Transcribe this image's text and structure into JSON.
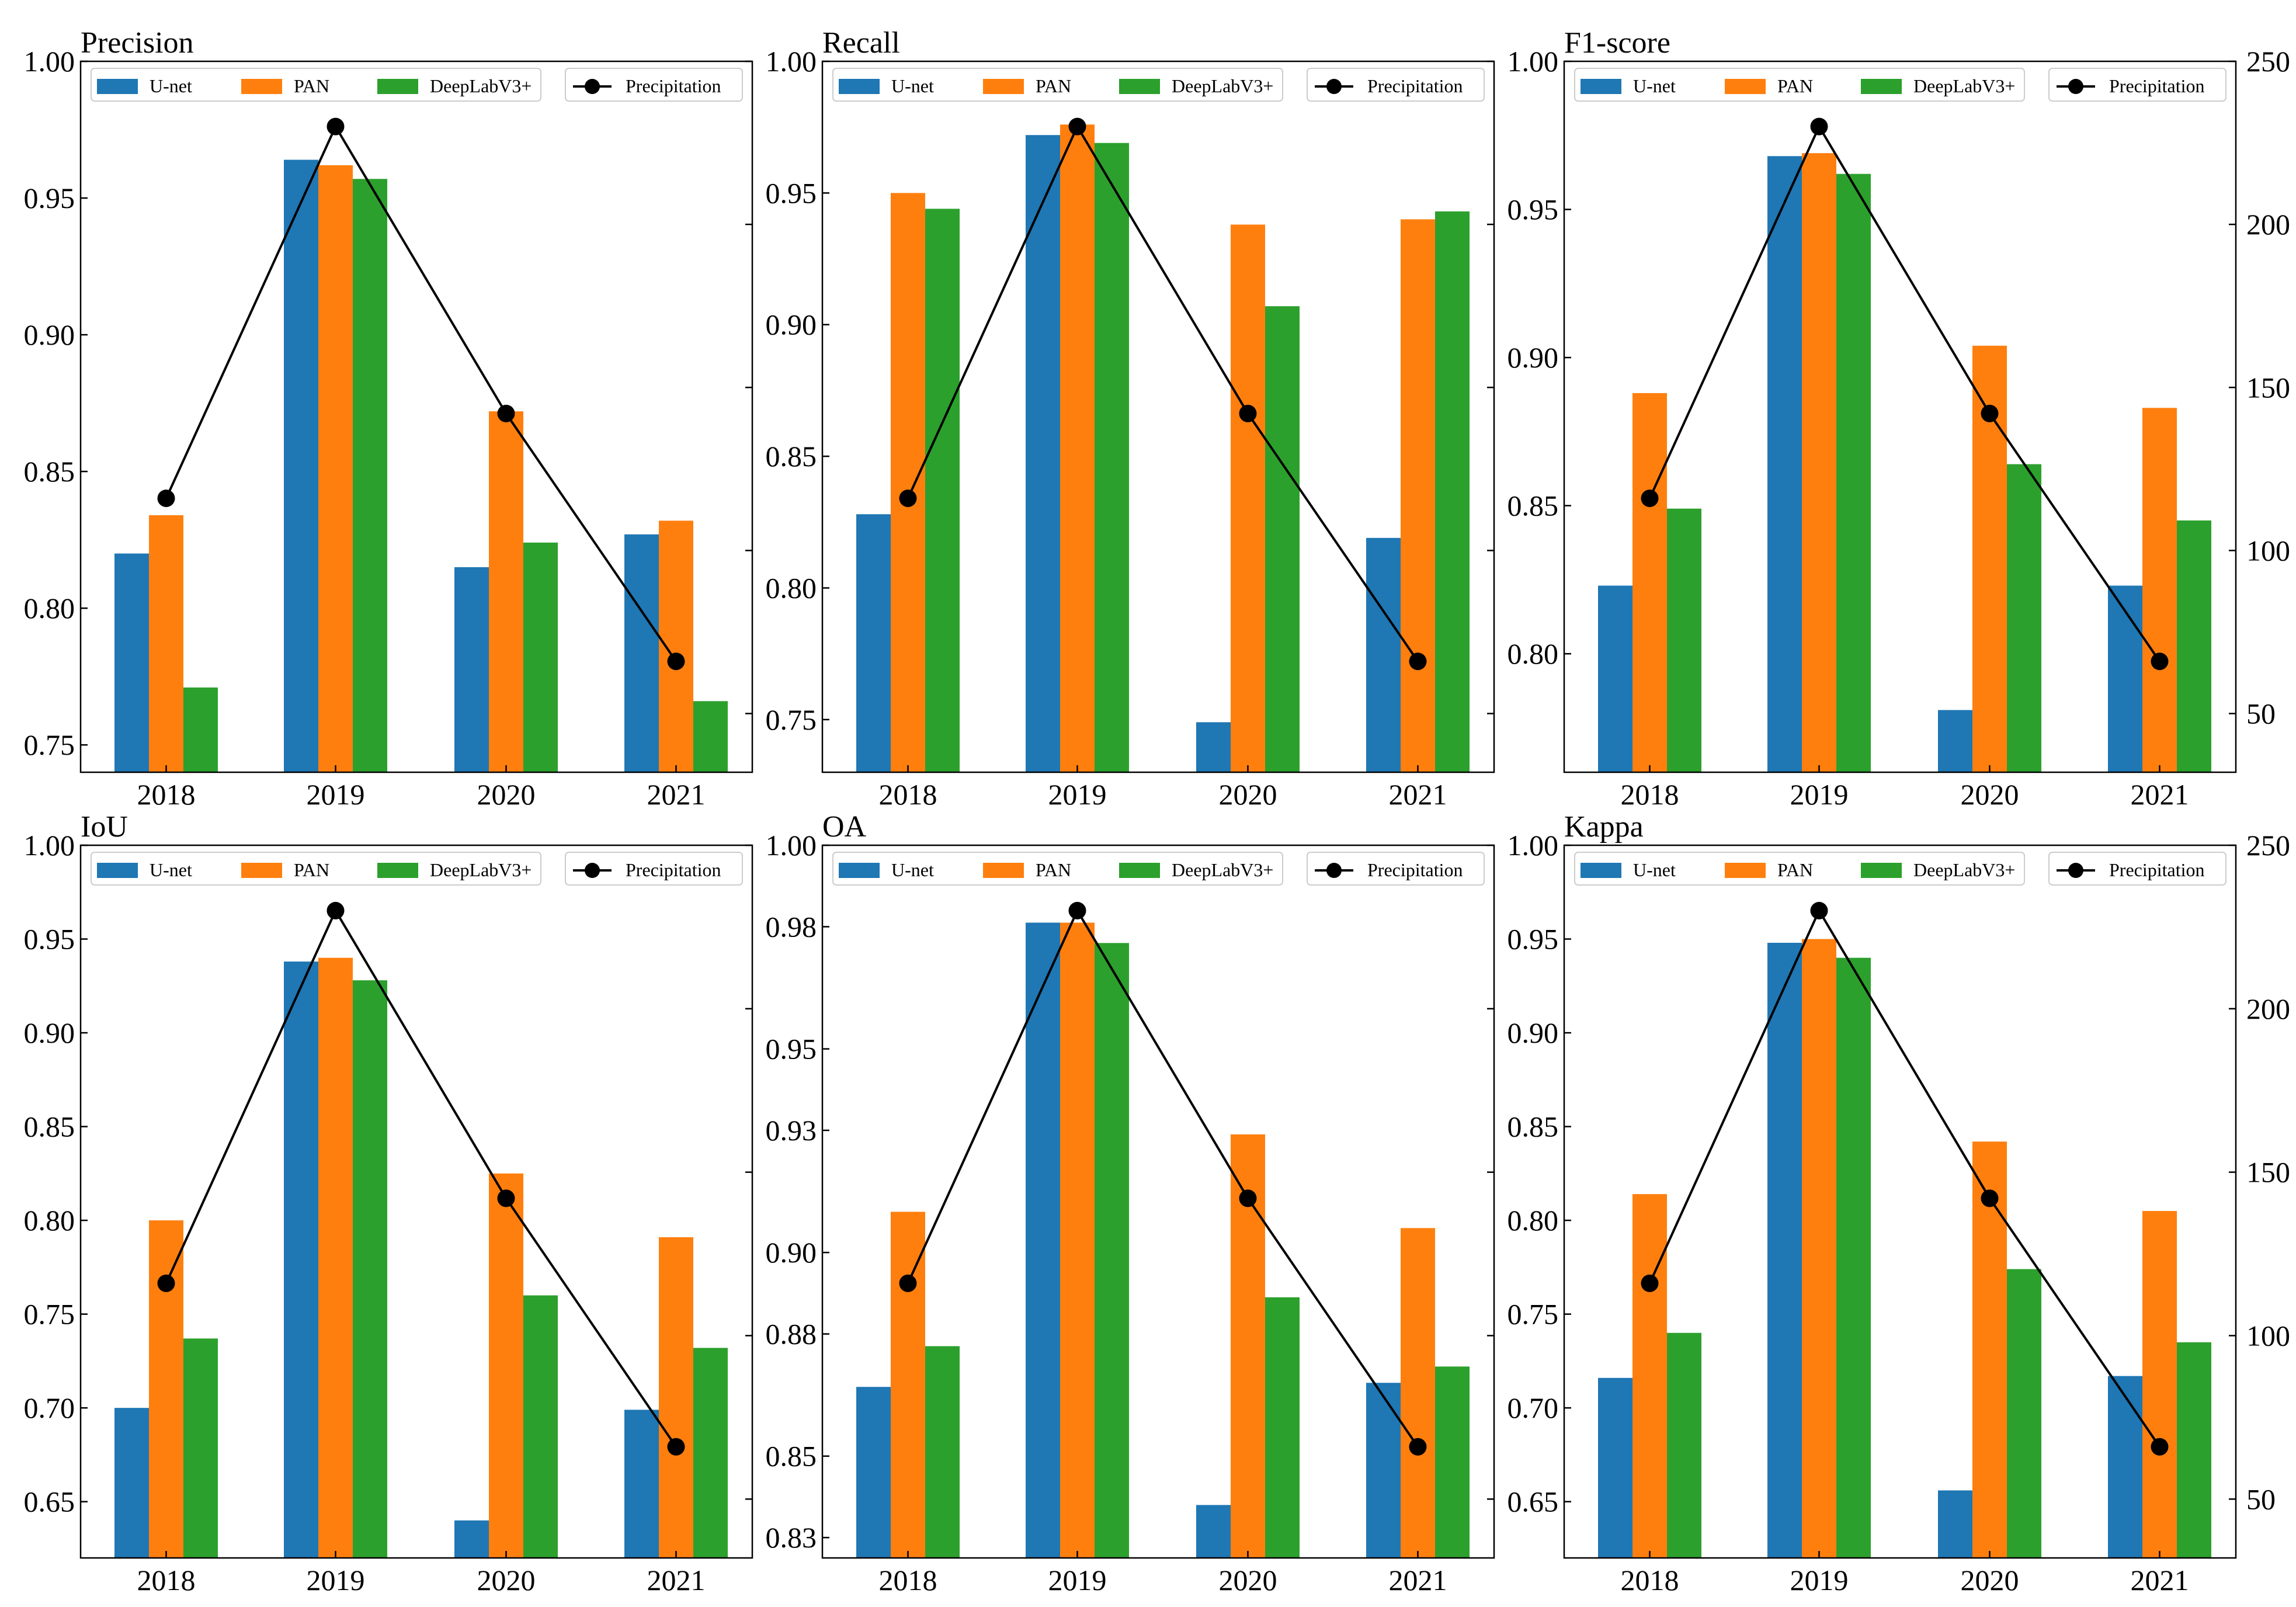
{
  "colors": {
    "U-net": "#1f77b4",
    "PAN": "#ff7f0e",
    "DeepLabV3+": "#2ca02c",
    "Precipitation": "#000000"
  },
  "chart_data": [
    {
      "type": "bar",
      "title": "Precision",
      "categories": [
        "2018",
        "2019",
        "2020",
        "2021"
      ],
      "series": [
        {
          "name": "U-net",
          "values": [
            0.82,
            0.964,
            0.815,
            0.827
          ]
        },
        {
          "name": "PAN",
          "values": [
            0.834,
            0.962,
            0.872,
            0.832
          ]
        },
        {
          "name": "DeepLabV3+",
          "values": [
            0.771,
            0.957,
            0.824,
            0.766
          ]
        }
      ],
      "line": {
        "name": "Precipitation",
        "values": [
          116,
          230,
          142,
          66
        ],
        "axis": "right"
      },
      "ylim": [
        0.74,
        1.0
      ],
      "yticks": [
        0.75,
        0.8,
        0.85,
        0.9,
        0.95,
        1.0
      ],
      "ytick_labels": [
        "0.75",
        "0.80",
        "0.85",
        "0.90",
        "0.95",
        "1.00"
      ],
      "y2lim": [
        32,
        250
      ],
      "y2ticks": [],
      "y2tick_labels": [],
      "legend": "top",
      "grid": false
    },
    {
      "type": "bar",
      "title": "Recall",
      "categories": [
        "2018",
        "2019",
        "2020",
        "2021"
      ],
      "series": [
        {
          "name": "U-net",
          "values": [
            0.828,
            0.972,
            0.749,
            0.819
          ]
        },
        {
          "name": "PAN",
          "values": [
            0.95,
            0.976,
            0.938,
            0.94
          ]
        },
        {
          "name": "DeepLabV3+",
          "values": [
            0.944,
            0.969,
            0.907,
            0.943
          ]
        }
      ],
      "line": {
        "name": "Precipitation",
        "values": [
          116,
          230,
          142,
          66
        ],
        "axis": "right"
      },
      "ylim": [
        0.73,
        1.0
      ],
      "yticks": [
        0.75,
        0.8,
        0.85,
        0.9,
        0.95,
        1.0
      ],
      "ytick_labels": [
        "0.75",
        "0.80",
        "0.85",
        "0.90",
        "0.95",
        "1.00"
      ],
      "y2lim": [
        32,
        250
      ],
      "y2ticks": [],
      "y2tick_labels": [],
      "legend": "top",
      "grid": false
    },
    {
      "type": "bar",
      "title": "F1-score",
      "categories": [
        "2018",
        "2019",
        "2020",
        "2021"
      ],
      "series": [
        {
          "name": "U-net",
          "values": [
            0.823,
            0.968,
            0.781,
            0.823
          ]
        },
        {
          "name": "PAN",
          "values": [
            0.888,
            0.969,
            0.904,
            0.883
          ]
        },
        {
          "name": "DeepLabV3+",
          "values": [
            0.849,
            0.962,
            0.864,
            0.845
          ]
        }
      ],
      "line": {
        "name": "Precipitation",
        "values": [
          116,
          230,
          142,
          66
        ],
        "axis": "right"
      },
      "ylim": [
        0.76,
        1.0
      ],
      "yticks": [
        0.8,
        0.85,
        0.9,
        0.95,
        1.0
      ],
      "ytick_labels": [
        "0.80",
        "0.85",
        "0.90",
        "0.95",
        "1.00"
      ],
      "y2lim": [
        32,
        250
      ],
      "y2ticks": [
        50,
        100,
        150,
        200,
        250
      ],
      "y2tick_labels": [
        "50",
        "100",
        "150",
        "200",
        "250"
      ],
      "legend": "top",
      "grid": false
    },
    {
      "type": "bar",
      "title": "IoU",
      "categories": [
        "2018",
        "2019",
        "2020",
        "2021"
      ],
      "series": [
        {
          "name": "U-net",
          "values": [
            0.7,
            0.938,
            0.64,
            0.699
          ]
        },
        {
          "name": "PAN",
          "values": [
            0.8,
            0.94,
            0.825,
            0.791
          ]
        },
        {
          "name": "DeepLabV3+",
          "values": [
            0.737,
            0.928,
            0.76,
            0.732
          ]
        }
      ],
      "line": {
        "name": "Precipitation",
        "values": [
          116,
          230,
          142,
          66
        ],
        "axis": "right"
      },
      "ylim": [
        0.62,
        1.0
      ],
      "yticks": [
        0.65,
        0.7,
        0.75,
        0.8,
        0.85,
        0.9,
        0.95,
        1.0
      ],
      "ytick_labels": [
        "0.65",
        "0.70",
        "0.75",
        "0.80",
        "0.85",
        "0.90",
        "0.95",
        "1.00"
      ],
      "y2lim": [
        32,
        250
      ],
      "y2ticks": [],
      "y2tick_labels": [],
      "legend": "top",
      "grid": false
    },
    {
      "type": "bar",
      "title": "OA",
      "categories": [
        "2018",
        "2019",
        "2020",
        "2021"
      ],
      "series": [
        {
          "name": "U-net",
          "values": [
            0.867,
            0.981,
            0.838,
            0.868
          ]
        },
        {
          "name": "PAN",
          "values": [
            0.91,
            0.981,
            0.929,
            0.906
          ]
        },
        {
          "name": "DeepLabV3+",
          "values": [
            0.877,
            0.976,
            0.889,
            0.872
          ]
        }
      ],
      "line": {
        "name": "Precipitation",
        "values": [
          116,
          230,
          142,
          66
        ],
        "axis": "right"
      },
      "ylim": [
        0.825,
        1.0
      ],
      "yticks": [
        0.83,
        0.85,
        0.88,
        0.9,
        0.93,
        0.95,
        0.98,
        1.0
      ],
      "ytick_labels": [
        "0.83",
        "0.85",
        "0.88",
        "0.90",
        "0.93",
        "0.95",
        "0.98",
        "1.00"
      ],
      "y2lim": [
        32,
        250
      ],
      "y2ticks": [],
      "y2tick_labels": [],
      "legend": "top",
      "grid": false
    },
    {
      "type": "bar",
      "title": "Kappa",
      "categories": [
        "2018",
        "2019",
        "2020",
        "2021"
      ],
      "series": [
        {
          "name": "U-net",
          "values": [
            0.716,
            0.948,
            0.656,
            0.717
          ]
        },
        {
          "name": "PAN",
          "values": [
            0.814,
            0.95,
            0.842,
            0.805
          ]
        },
        {
          "name": "DeepLabV3+",
          "values": [
            0.74,
            0.94,
            0.774,
            0.735
          ]
        }
      ],
      "line": {
        "name": "Precipitation",
        "values": [
          116,
          230,
          142,
          66
        ],
        "axis": "right"
      },
      "ylim": [
        0.62,
        1.0
      ],
      "yticks": [
        0.65,
        0.7,
        0.75,
        0.8,
        0.85,
        0.9,
        0.95,
        1.0
      ],
      "ytick_labels": [
        "0.65",
        "0.70",
        "0.75",
        "0.80",
        "0.85",
        "0.90",
        "0.95",
        "1.00"
      ],
      "y2lim": [
        32,
        250
      ],
      "y2ticks": [
        50,
        100,
        150,
        200,
        250
      ],
      "y2tick_labels": [
        "50",
        "100",
        "150",
        "200",
        "250"
      ],
      "legend": "top",
      "grid": false
    }
  ]
}
